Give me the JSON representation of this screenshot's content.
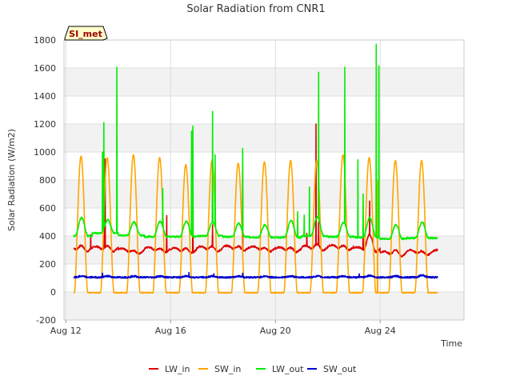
{
  "chart_data": {
    "type": "line",
    "title": "Solar Radiation from CNR1",
    "xlabel": "Time",
    "ylabel": "Solar Radiation (W/m2)",
    "annotation": "SI_met",
    "x_ticks": [
      "Aug 12",
      "Aug 16",
      "Aug 20",
      "Aug 24"
    ],
    "x_tick_days": [
      12,
      16,
      20,
      24
    ],
    "xlim": [
      11.93,
      27.2
    ],
    "ylim": [
      -200,
      1800
    ],
    "y_ticks": [
      -200,
      0,
      200,
      400,
      600,
      800,
      1000,
      1200,
      1400,
      1600,
      1800
    ],
    "y_tick_labels": [
      "-200",
      "0",
      "200",
      "400",
      "600",
      "800",
      "1000",
      "1200",
      "1400",
      "1600",
      "1800"
    ],
    "grid": true,
    "legend_position": "bottom",
    "time_start_day": 12.3,
    "days": 14,
    "series": [
      {
        "name": "LW_in",
        "color": "#dd0000",
        "baseline": [
          300,
          300,
          285,
          295,
          290,
          300,
          305,
          300,
          295,
          305,
          310,
          295,
          265,
          275
        ],
        "amplitude": [
          55,
          55,
          35,
          40,
          45,
          50,
          45,
          40,
          45,
          60,
          45,
          140,
          60,
          40
        ],
        "spikes": [
          [
            12.95,
            410
          ],
          [
            13.45,
            1000
          ],
          [
            13.5,
            950
          ],
          [
            15.85,
            545
          ],
          [
            16.85,
            1020
          ],
          [
            17.6,
            480
          ],
          [
            18.75,
            900
          ],
          [
            21.2,
            420
          ],
          [
            21.55,
            1200
          ],
          [
            21.65,
            500
          ],
          [
            23.35,
            450
          ],
          [
            23.6,
            650
          ],
          [
            23.8,
            300
          ]
        ]
      },
      {
        "name": "SW_in",
        "color": "#ffa500",
        "baseline": [
          0,
          0,
          0,
          0,
          0,
          0,
          0,
          0,
          0,
          0,
          0,
          0,
          0,
          0
        ],
        "amplitude": [
          970,
          960,
          980,
          960,
          910,
          940,
          920,
          930,
          940,
          940,
          980,
          960,
          940,
          940
        ],
        "spikes": [
          [
            23.9,
            800
          ]
        ]
      },
      {
        "name": "LW_out",
        "color": "#00ee00",
        "baseline": [
          400,
          420,
          405,
          395,
          395,
          400,
          395,
          390,
          390,
          400,
          395,
          390,
          380,
          385
        ],
        "amplitude": [
          130,
          95,
          95,
          110,
          110,
          100,
          95,
          90,
          120,
          135,
          100,
          140,
          100,
          115
        ],
        "spikes": [
          [
            13.4,
            1000
          ],
          [
            13.45,
            1210
          ],
          [
            13.55,
            500
          ],
          [
            13.95,
            1605
          ],
          [
            15.7,
            740
          ],
          [
            16.8,
            1150
          ],
          [
            16.85,
            1185
          ],
          [
            17.6,
            1290
          ],
          [
            17.7,
            980
          ],
          [
            18.75,
            1025
          ],
          [
            20.85,
            575
          ],
          [
            21.1,
            550
          ],
          [
            21.3,
            750
          ],
          [
            21.65,
            1570
          ],
          [
            22.65,
            1605
          ],
          [
            23.15,
            945
          ],
          [
            23.35,
            700
          ],
          [
            23.85,
            1770
          ],
          [
            23.95,
            1615
          ]
        ]
      },
      {
        "name": "SW_out",
        "color": "#0000cc",
        "baseline": [
          105,
          105,
          105,
          105,
          105,
          105,
          105,
          105,
          105,
          105,
          105,
          105,
          105,
          105
        ],
        "amplitude": [
          8,
          8,
          8,
          8,
          8,
          8,
          8,
          8,
          8,
          8,
          8,
          12,
          8,
          15
        ],
        "spikes": [
          [
            13.4,
            135
          ],
          [
            16.7,
            140
          ],
          [
            17.65,
            130
          ],
          [
            18.75,
            135
          ],
          [
            23.2,
            130
          ],
          [
            26.2,
            165
          ]
        ]
      }
    ]
  }
}
